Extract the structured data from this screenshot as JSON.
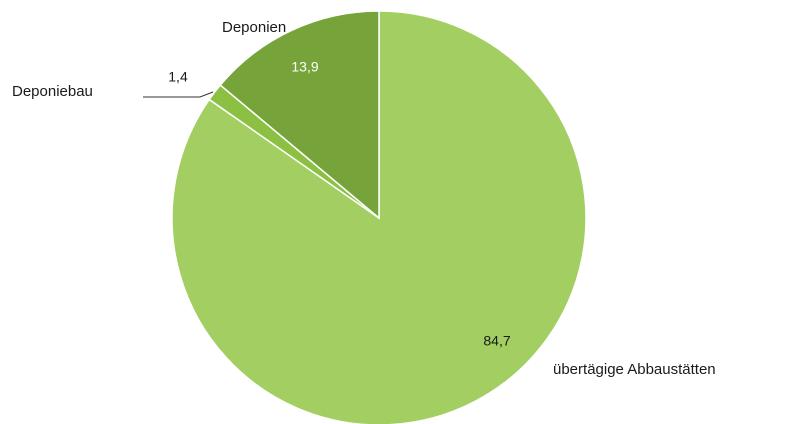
{
  "chart_data": {
    "type": "pie",
    "categories": [
      "übertägige Abbaustätten",
      "Deponiebau",
      "Deponien"
    ],
    "values": [
      84.7,
      1.4,
      13.9
    ],
    "value_labels": [
      "84,7",
      "1,4",
      "13,9"
    ],
    "colors": [
      "#a3cf62",
      "#8cc043",
      "#76a43a"
    ]
  }
}
